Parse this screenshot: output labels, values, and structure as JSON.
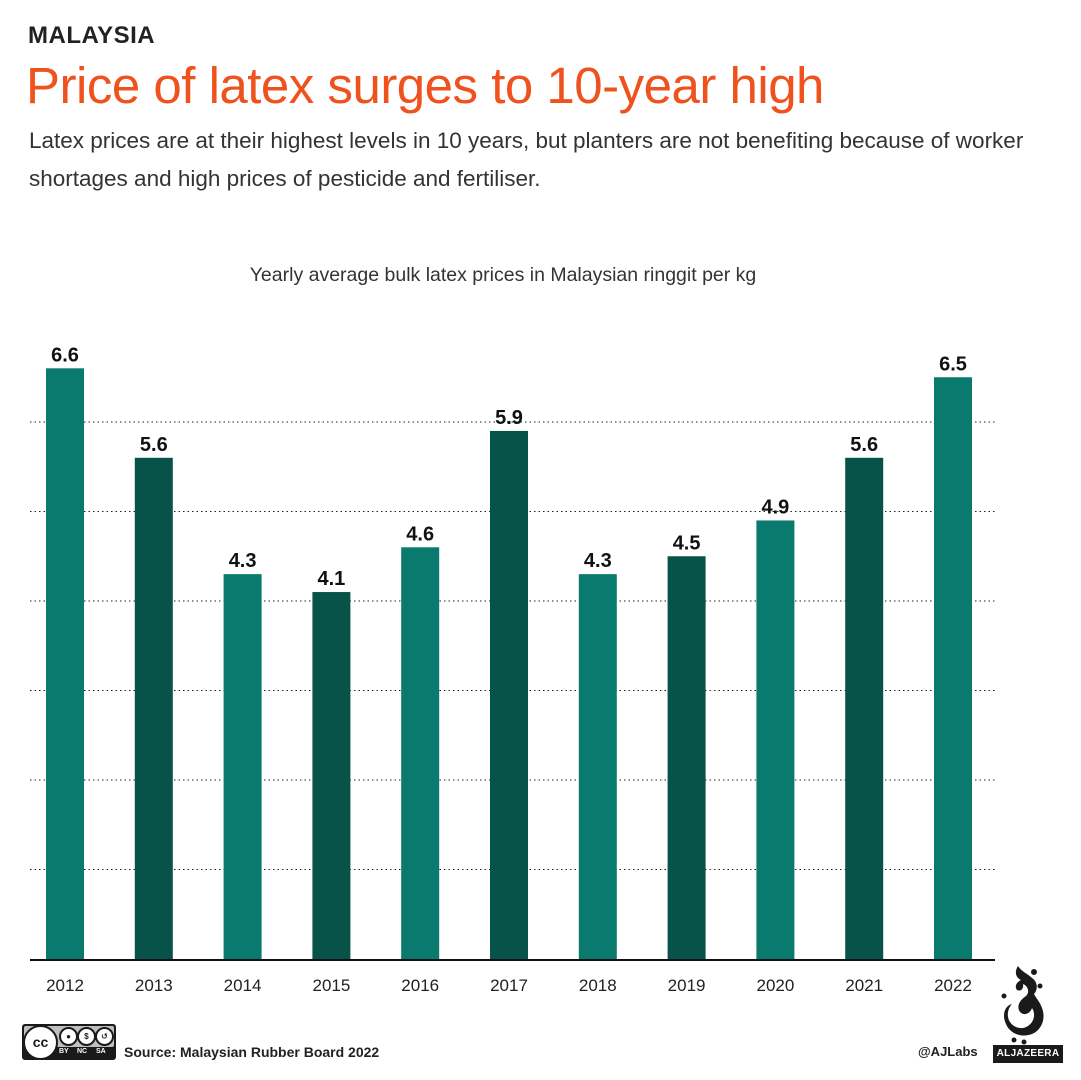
{
  "header": {
    "kicker": "MALAYSIA",
    "title": "Price of latex surges to 10-year high",
    "subtitle": "Latex prices are at their highest levels in 10 years, but planters are not benefiting because of worker shortages and high prices of pesticide and fertiliser."
  },
  "chart_data": {
    "type": "bar",
    "title": "Yearly average bulk latex prices in Malaysian ringgit per kg",
    "categories": [
      "2012",
      "2013",
      "2014",
      "2015",
      "2016",
      "2017",
      "2018",
      "2019",
      "2020",
      "2021",
      "2022"
    ],
    "values": [
      6.6,
      5.6,
      4.3,
      4.1,
      4.6,
      5.9,
      4.3,
      4.5,
      4.9,
      5.6,
      6.5
    ],
    "value_labels": [
      "6.6",
      "5.6",
      "4.3",
      "4.1",
      "4.6",
      "5.9",
      "4.3",
      "4.5",
      "4.9",
      "5.6",
      "6.5"
    ],
    "xlabel": "",
    "ylabel": "",
    "ylim": [
      0,
      7
    ],
    "gridlines": [
      1,
      2,
      3,
      4,
      5,
      6
    ],
    "grid": true,
    "colors": {
      "light": "#0a7a6e",
      "dark": "#07534a"
    },
    "color_pattern": [
      "light",
      "dark",
      "light",
      "dark",
      "light",
      "dark",
      "light",
      "dark",
      "light",
      "dark",
      "light"
    ]
  },
  "footer": {
    "source": "Source: Malaysian Rubber Board 2022",
    "handle": "@AJLabs",
    "license": {
      "cc": "cc",
      "by": "BY",
      "nc": "NC",
      "sa": "SA"
    },
    "brand": "ALJAZEERA"
  }
}
